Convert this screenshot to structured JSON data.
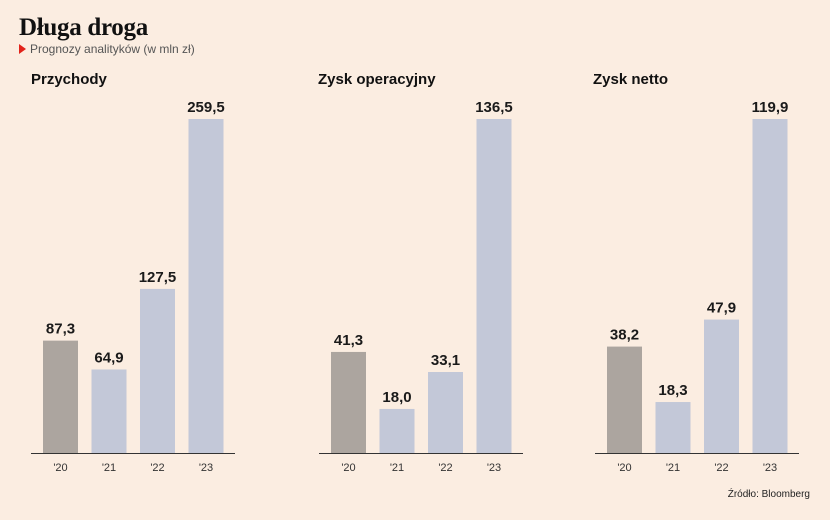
{
  "header": {
    "title": "Długa droga",
    "subtitle": "Prognozy analityków (w mln zł)"
  },
  "footer": {
    "source": "Źródło: Bloomberg"
  },
  "colors": {
    "actual": "#aca59f",
    "forecast": "#c3c8d8",
    "baseline": "#333333",
    "accent": "#e2231a"
  },
  "chart_data": [
    {
      "type": "bar",
      "title": "Przychody",
      "categories": [
        "'20",
        "'21",
        "'22",
        "'23"
      ],
      "values": [
        87.3,
        64.9,
        127.5,
        259.5
      ],
      "labels": [
        "87,3",
        "64,9",
        "127,5",
        "259,5"
      ],
      "forecast": [
        false,
        true,
        true,
        true
      ],
      "ylim": [
        0,
        259.5
      ]
    },
    {
      "type": "bar",
      "title": "Zysk operacyjny",
      "categories": [
        "'20",
        "'21",
        "'22",
        "'23"
      ],
      "values": [
        41.3,
        18.0,
        33.1,
        136.5
      ],
      "labels": [
        "41,3",
        "18,0",
        "33,1",
        "136,5"
      ],
      "forecast": [
        false,
        true,
        true,
        true
      ],
      "ylim": [
        0,
        136.5
      ]
    },
    {
      "type": "bar",
      "title": "Zysk netto",
      "categories": [
        "'20",
        "'21",
        "'22",
        "'23"
      ],
      "values": [
        38.2,
        18.3,
        47.9,
        119.9
      ],
      "labels": [
        "38,2",
        "18,3",
        "47,9",
        "119,9"
      ],
      "forecast": [
        false,
        true,
        true,
        true
      ],
      "ylim": [
        0,
        119.9
      ]
    }
  ]
}
